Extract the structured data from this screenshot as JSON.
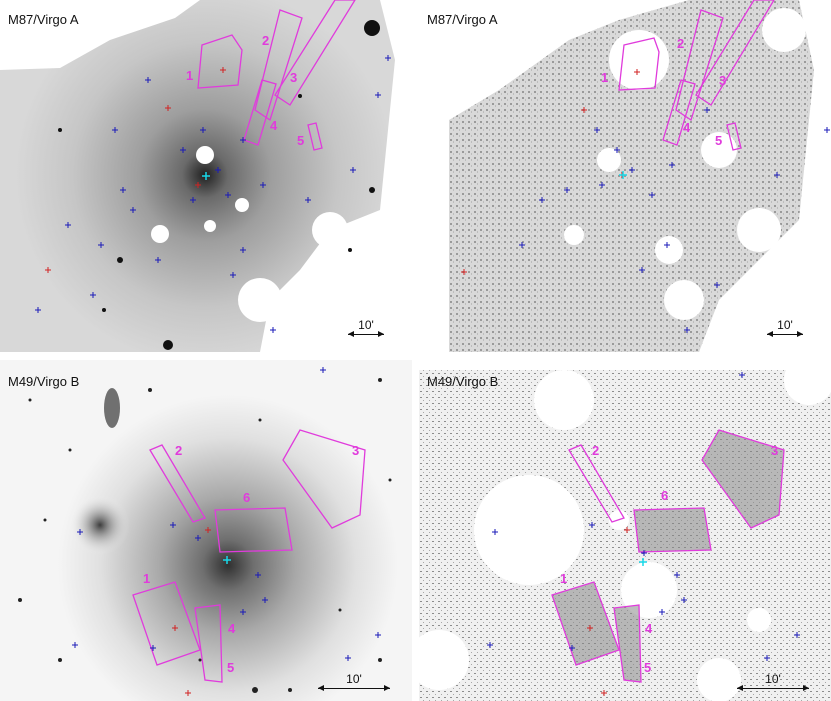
{
  "colors": {
    "region": "#e03bdc",
    "blue_marker": "#1a1ab8",
    "red_marker": "#d22222",
    "center_marker": "#18d8e8"
  },
  "panels": [
    {
      "id": "m87-smooth",
      "label": "M87/Virgo A",
      "scale": "10'",
      "regions": [
        "1",
        "2",
        "3",
        "4",
        "5"
      ]
    },
    {
      "id": "m87-residual",
      "label": "M87/Virgo A",
      "scale": "10'",
      "regions": [
        "1",
        "2",
        "3",
        "4",
        "5"
      ]
    },
    {
      "id": "m49-smooth",
      "label": "M49/Virgo B",
      "scale": "10'",
      "regions": [
        "1",
        "2",
        "3",
        "4",
        "5",
        "6"
      ]
    },
    {
      "id": "m49-residual",
      "label": "M49/Virgo B",
      "scale": "10'",
      "regions": [
        "1",
        "2",
        "3",
        "4",
        "5",
        "6"
      ]
    }
  ]
}
